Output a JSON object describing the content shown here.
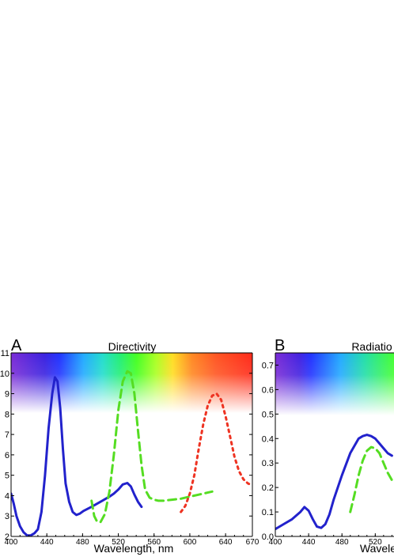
{
  "chart_data": [
    {
      "panel_letter": "A",
      "title": "Directivity",
      "type": "line",
      "xlabel": "Wavelength, nm",
      "ylabel": "",
      "xlim": [
        400,
        670
      ],
      "ylim": [
        2,
        11
      ],
      "x_ticks": [
        400,
        440,
        480,
        520,
        560,
        600,
        640,
        670
      ],
      "y_ticks": [
        2,
        3,
        4,
        5,
        6,
        7,
        8,
        9,
        10,
        11
      ],
      "grid": false,
      "series": [
        {
          "color": "#2222cc",
          "style": "solid",
          "x": [
            400,
            403,
            406,
            410,
            414,
            418,
            422,
            426,
            430,
            434,
            438,
            442,
            446,
            449,
            452,
            455,
            458,
            461,
            465,
            469,
            473,
            477,
            481,
            490,
            500,
            510,
            515,
            520,
            525,
            530,
            534,
            538,
            542,
            546
          ],
          "y": [
            4.1,
            3.6,
            3.0,
            2.5,
            2.2,
            2.05,
            2.05,
            2.15,
            2.35,
            3.2,
            5.0,
            7.3,
            9.0,
            9.8,
            9.6,
            8.3,
            6.3,
            4.6,
            3.7,
            3.2,
            3.05,
            3.12,
            3.25,
            3.45,
            3.7,
            3.95,
            4.1,
            4.3,
            4.55,
            4.62,
            4.45,
            4.05,
            3.7,
            3.45
          ]
        },
        {
          "color": "#55dd22",
          "style": "dashed",
          "x": [
            490,
            493,
            496,
            500,
            505,
            510,
            515,
            520,
            525,
            530,
            534,
            538,
            542,
            546,
            550,
            555,
            560,
            565,
            570,
            580,
            590,
            600,
            610,
            620,
            625
          ],
          "y": [
            3.75,
            3.0,
            2.75,
            2.7,
            3.1,
            4.2,
            6.0,
            8.2,
            9.6,
            10.1,
            10.0,
            9.0,
            7.2,
            5.5,
            4.3,
            3.9,
            3.8,
            3.75,
            3.75,
            3.8,
            3.85,
            3.95,
            4.05,
            4.15,
            4.2
          ]
        },
        {
          "color": "#ee3322",
          "style": "dotted",
          "x": [
            590,
            595,
            600,
            605,
            610,
            615,
            620,
            625,
            630,
            635,
            640,
            645,
            650,
            655,
            660,
            665,
            670
          ],
          "y": [
            3.2,
            3.5,
            4.1,
            5.0,
            6.3,
            7.5,
            8.4,
            8.9,
            9.0,
            8.7,
            7.9,
            6.9,
            5.9,
            5.2,
            4.8,
            4.6,
            4.5
          ]
        }
      ]
    },
    {
      "panel_letter": "B",
      "title": "Radiatio",
      "type": "line",
      "xlabel": "Wavele",
      "ylabel": "",
      "xlim": [
        400,
        590
      ],
      "ylim": [
        0.0,
        0.75
      ],
      "x_ticks": [
        400,
        440,
        480,
        520
      ],
      "y_ticks": [
        "0.0",
        "0.1",
        "0.2",
        "0.3",
        "0.4",
        "0.5",
        "0.6",
        "0.7"
      ],
      "grid": false,
      "series": [
        {
          "color": "#2222cc",
          "style": "solid",
          "x": [
            400,
            410,
            420,
            430,
            435,
            440,
            445,
            450,
            455,
            460,
            465,
            470,
            480,
            490,
            500,
            505,
            510,
            515,
            520,
            525,
            530,
            535,
            540
          ],
          "y": [
            0.03,
            0.05,
            0.07,
            0.1,
            0.12,
            0.105,
            0.07,
            0.04,
            0.035,
            0.05,
            0.09,
            0.15,
            0.25,
            0.34,
            0.4,
            0.41,
            0.415,
            0.41,
            0.4,
            0.38,
            0.36,
            0.34,
            0.33
          ]
        },
        {
          "color": "#55dd22",
          "style": "dashed",
          "x": [
            490,
            495,
            500,
            505,
            510,
            515,
            520,
            525,
            530,
            535,
            540
          ],
          "y": [
            0.1,
            0.17,
            0.25,
            0.31,
            0.35,
            0.365,
            0.36,
            0.34,
            0.3,
            0.26,
            0.23
          ]
        }
      ]
    }
  ]
}
